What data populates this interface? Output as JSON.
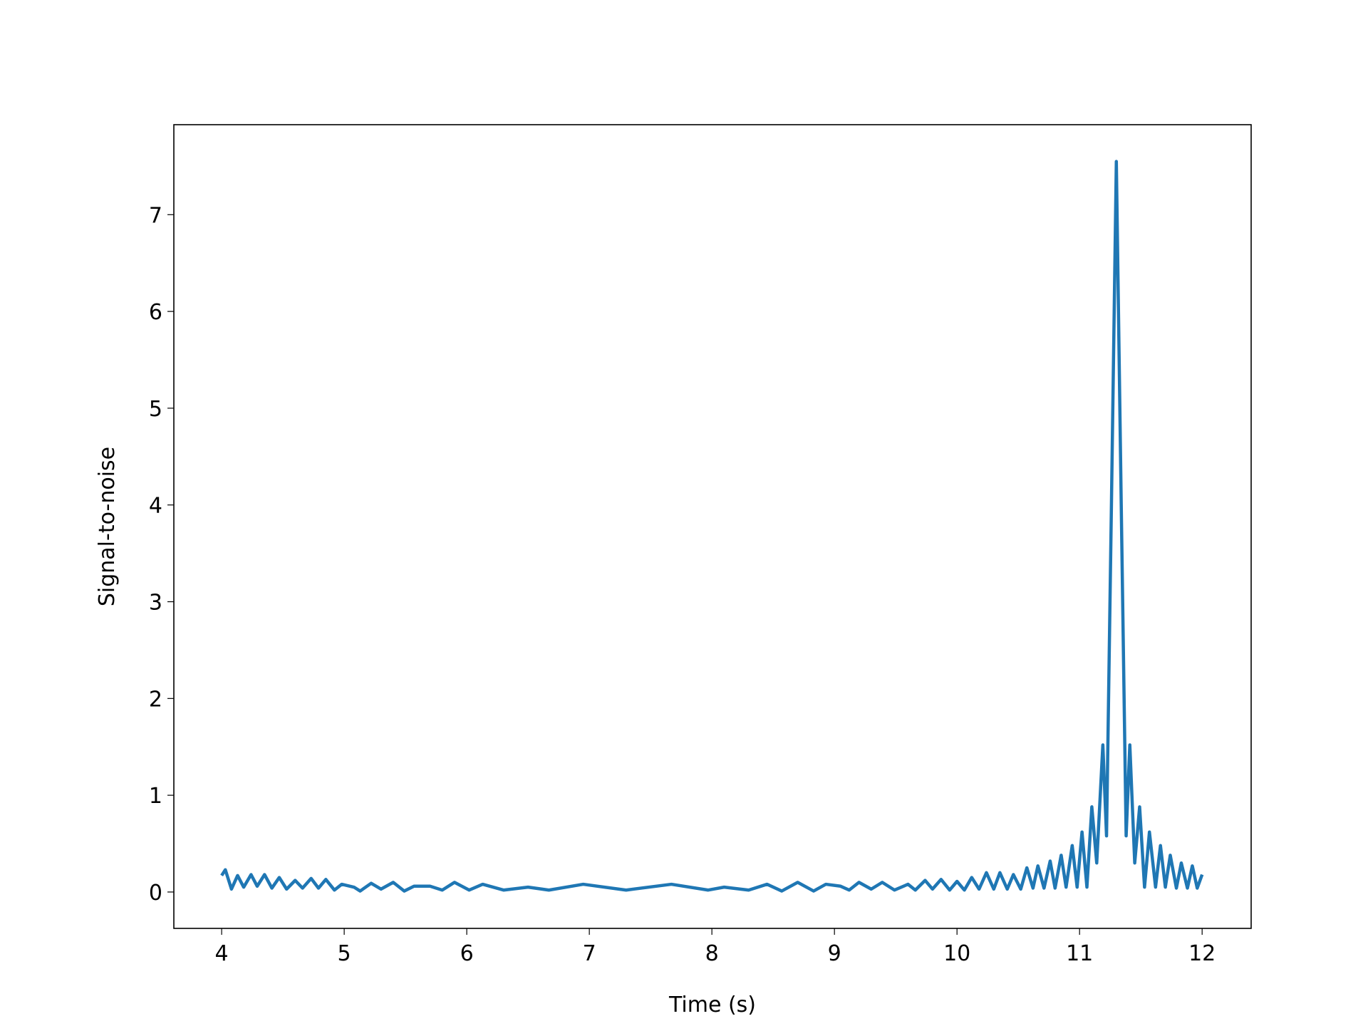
{
  "chart_data": {
    "type": "line",
    "xlabel": "Time (s)",
    "ylabel": "Signal-to-noise",
    "xlim": [
      3.61,
      12.4
    ],
    "ylim": [
      -0.376,
      7.93
    ],
    "xticks": [
      4,
      5,
      6,
      7,
      8,
      9,
      10,
      11,
      12
    ],
    "yticks": [
      0,
      1,
      2,
      3,
      4,
      5,
      6,
      7
    ],
    "grid": false,
    "series": [
      {
        "color": "#1f77b4",
        "x": [
          4.0,
          4.03,
          4.08,
          4.13,
          4.18,
          4.24,
          4.29,
          4.35,
          4.41,
          4.47,
          4.53,
          4.6,
          4.66,
          4.73,
          4.79,
          4.85,
          4.92,
          4.98,
          5.08,
          5.13,
          5.22,
          5.3,
          5.4,
          5.49,
          5.57,
          5.7,
          5.8,
          5.9,
          6.02,
          6.13,
          6.3,
          6.5,
          6.67,
          6.95,
          7.3,
          7.67,
          7.97,
          8.1,
          8.3,
          8.45,
          8.57,
          8.7,
          8.83,
          8.93,
          9.05,
          9.12,
          9.2,
          9.3,
          9.39,
          9.49,
          9.6,
          9.66,
          9.74,
          9.8,
          9.87,
          9.94,
          10.0,
          10.06,
          10.12,
          10.18,
          10.24,
          10.3,
          10.35,
          10.41,
          10.46,
          10.52,
          10.57,
          10.62,
          10.66,
          10.71,
          10.76,
          10.8,
          10.85,
          10.89,
          10.94,
          10.98,
          11.02,
          11.06,
          11.1,
          11.14,
          11.19,
          11.22,
          11.26,
          11.3,
          11.34,
          11.38,
          11.41,
          11.45,
          11.49,
          11.53,
          11.57,
          11.62,
          11.66,
          11.7,
          11.74,
          11.79,
          11.83,
          11.88,
          11.92,
          11.96,
          12.0
        ],
        "values": [
          0.17,
          0.23,
          0.03,
          0.17,
          0.05,
          0.18,
          0.06,
          0.18,
          0.04,
          0.15,
          0.03,
          0.12,
          0.04,
          0.14,
          0.04,
          0.13,
          0.02,
          0.08,
          0.05,
          0.01,
          0.09,
          0.03,
          0.1,
          0.01,
          0.06,
          0.06,
          0.02,
          0.1,
          0.02,
          0.08,
          0.02,
          0.05,
          0.02,
          0.08,
          0.02,
          0.08,
          0.02,
          0.05,
          0.02,
          0.08,
          0.01,
          0.1,
          0.01,
          0.08,
          0.06,
          0.02,
          0.1,
          0.03,
          0.1,
          0.02,
          0.08,
          0.02,
          0.12,
          0.03,
          0.13,
          0.02,
          0.11,
          0.02,
          0.15,
          0.03,
          0.2,
          0.03,
          0.2,
          0.03,
          0.18,
          0.03,
          0.25,
          0.04,
          0.27,
          0.04,
          0.32,
          0.04,
          0.38,
          0.05,
          0.48,
          0.05,
          0.62,
          0.05,
          0.88,
          0.3,
          1.52,
          0.58,
          4.0,
          7.55,
          4.0,
          0.58,
          1.52,
          0.3,
          0.88,
          0.05,
          0.62,
          0.05,
          0.48,
          0.05,
          0.38,
          0.04,
          0.3,
          0.04,
          0.27,
          0.04,
          0.18
        ]
      }
    ]
  }
}
